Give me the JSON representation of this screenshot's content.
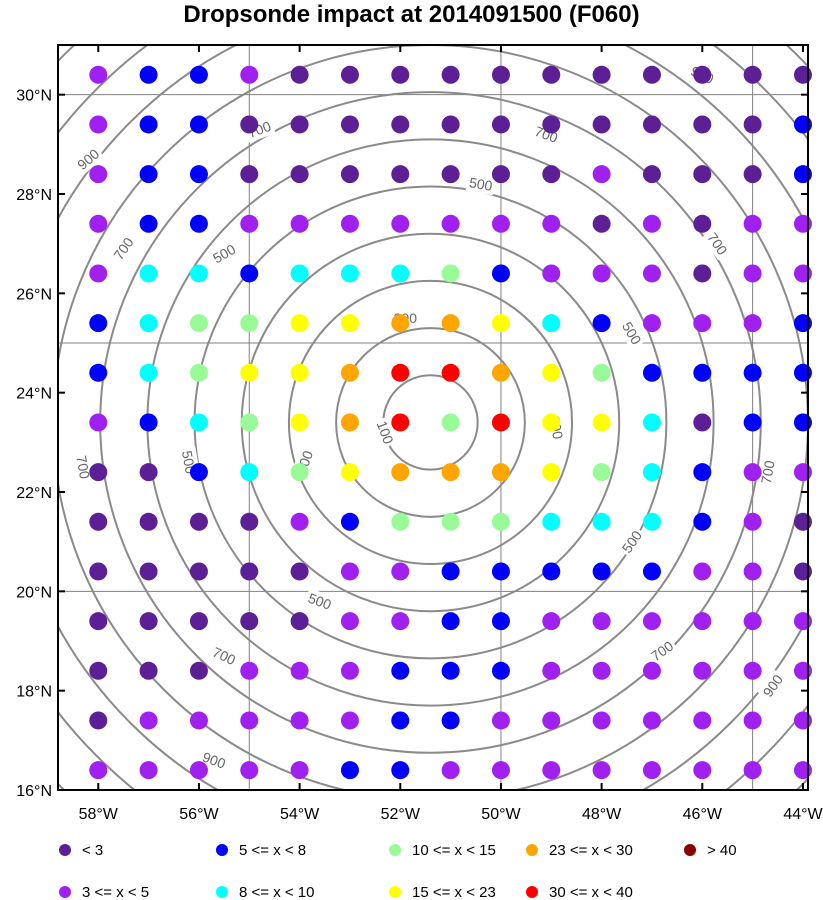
{
  "title": "Dropsonde impact at 2014091500 (F060)",
  "colors": {
    "lt3": "#5c1f96",
    "3to5": "#a020f0",
    "5to8": "#0000ff",
    "8to10": "#00ffff",
    "10to15": "#98fb98",
    "15to23": "#ffff00",
    "23to30": "#ffa500",
    "30to40": "#ff0000",
    "gt40": "#8b0000",
    "contour": "#8a8a8a",
    "gridline": "#808080",
    "frame": "#000000"
  },
  "axes": {
    "lon_range": [
      -58.8,
      -43.9
    ],
    "lat_range": [
      16.0,
      31.0
    ],
    "lon_ticks": [
      {
        "value": -58,
        "label": "58°W"
      },
      {
        "value": -56,
        "label": "56°W"
      },
      {
        "value": -54,
        "label": "54°W"
      },
      {
        "value": -52,
        "label": "52°W"
      },
      {
        "value": -50,
        "label": "50°W"
      },
      {
        "value": -48,
        "label": "48°W"
      },
      {
        "value": -46,
        "label": "46°W"
      },
      {
        "value": -44,
        "label": "44°W"
      }
    ],
    "lat_ticks": [
      {
        "value": 16,
        "label": "16°N"
      },
      {
        "value": 18,
        "label": "18°N"
      },
      {
        "value": 20,
        "label": "20°N"
      },
      {
        "value": 22,
        "label": "22°N"
      },
      {
        "value": 24,
        "label": "24°N"
      },
      {
        "value": 26,
        "label": "26°N"
      },
      {
        "value": 28,
        "label": "28°N"
      },
      {
        "value": 30,
        "label": "30°N"
      }
    ],
    "grid_lons": [
      -55,
      -50,
      -45
    ],
    "grid_lats": [
      20,
      25,
      30
    ]
  },
  "contours": {
    "center": {
      "lon": -51.4,
      "lat": 23.4
    },
    "radius_deg_per_100km": 0.95,
    "levels": [
      100,
      200,
      300,
      400,
      500,
      600,
      700,
      800,
      900,
      1000,
      1100
    ],
    "labels": [
      {
        "text": "100",
        "lon": -52.3,
        "lat": 23.2,
        "rotate": 70
      },
      {
        "text": "300",
        "lon": -51.9,
        "lat": 25.5,
        "rotate": 0
      },
      {
        "text": "300",
        "lon": -53.9,
        "lat": 22.6,
        "rotate": -70
      },
      {
        "text": "300",
        "lon": -48.9,
        "lat": 23.3,
        "rotate": 80
      },
      {
        "text": "500",
        "lon": -50.4,
        "lat": 28.2,
        "rotate": 10
      },
      {
        "text": "500",
        "lon": -55.5,
        "lat": 26.8,
        "rotate": -30
      },
      {
        "text": "500",
        "lon": -56.2,
        "lat": 22.6,
        "rotate": 80
      },
      {
        "text": "500",
        "lon": -47.4,
        "lat": 25.2,
        "rotate": 60
      },
      {
        "text": "500",
        "lon": -47.4,
        "lat": 21.0,
        "rotate": -55
      },
      {
        "text": "500",
        "lon": -53.6,
        "lat": 19.8,
        "rotate": 20
      },
      {
        "text": "700",
        "lon": -54.8,
        "lat": 29.3,
        "rotate": -20
      },
      {
        "text": "700",
        "lon": -49.1,
        "lat": 29.2,
        "rotate": 20
      },
      {
        "text": "700",
        "lon": -57.5,
        "lat": 26.9,
        "rotate": -55
      },
      {
        "text": "700",
        "lon": -45.7,
        "lat": 27.0,
        "rotate": 55
      },
      {
        "text": "700",
        "lon": -58.3,
        "lat": 22.5,
        "rotate": 80
      },
      {
        "text": "700",
        "lon": -44.7,
        "lat": 22.4,
        "rotate": -80
      },
      {
        "text": "700",
        "lon": -55.5,
        "lat": 18.7,
        "rotate": 25
      },
      {
        "text": "700",
        "lon": -46.8,
        "lat": 18.8,
        "rotate": -35
      },
      {
        "text": "900",
        "lon": -58.2,
        "lat": 28.7,
        "rotate": -40
      },
      {
        "text": "900",
        "lon": -46.0,
        "lat": 30.4,
        "rotate": 25
      },
      {
        "text": "900",
        "lon": -44.6,
        "lat": 18.1,
        "rotate": -55
      },
      {
        "text": "900",
        "lon": -55.7,
        "lat": 16.6,
        "rotate": 20
      }
    ]
  },
  "dots": {
    "lons": [
      -58,
      -57,
      -56,
      -55,
      -54,
      -53,
      -52,
      -51,
      -50,
      -49,
      -48,
      -47,
      -46,
      -45,
      -44
    ],
    "lats": [
      30.4,
      29.4,
      28.4,
      27.4,
      26.4,
      25.4,
      24.4,
      23.4,
      22.4,
      21.4,
      20.4,
      19.4,
      18.4,
      17.4,
      16.4
    ],
    "rows": [
      [
        "3to5",
        "5to8",
        "5to8",
        "3to5",
        "lt3",
        "lt3",
        "lt3",
        "lt3",
        "lt3",
        "lt3",
        "lt3",
        "lt3",
        "lt3",
        "lt3",
        "lt3"
      ],
      [
        "3to5",
        "5to8",
        "5to8",
        "lt3",
        "lt3",
        "lt3",
        "lt3",
        "lt3",
        "lt3",
        "lt3",
        "lt3",
        "lt3",
        "lt3",
        "lt3",
        "5to8"
      ],
      [
        "3to5",
        "5to8",
        "5to8",
        "lt3",
        "lt3",
        "lt3",
        "lt3",
        "lt3",
        "lt3",
        "lt3",
        "3to5",
        "lt3",
        "lt3",
        "lt3",
        "5to8"
      ],
      [
        "3to5",
        "5to8",
        "5to8",
        "3to5",
        "3to5",
        "3to5",
        "3to5",
        "3to5",
        "3to5",
        "3to5",
        "lt3",
        "3to5",
        "lt3",
        "3to5",
        "3to5"
      ],
      [
        "3to5",
        "8to10",
        "8to10",
        "5to8",
        "8to10",
        "8to10",
        "8to10",
        "10to15",
        "5to8",
        "3to5",
        "3to5",
        "3to5",
        "lt3",
        "3to5",
        "3to5"
      ],
      [
        "5to8",
        "8to10",
        "10to15",
        "10to15",
        "15to23",
        "15to23",
        "23to30",
        "23to30",
        "15to23",
        "8to10",
        "5to8",
        "3to5",
        "3to5",
        "3to5",
        "5to8"
      ],
      [
        "5to8",
        "8to10",
        "10to15",
        "15to23",
        "15to23",
        "23to30",
        "30to40",
        "30to40",
        "23to30",
        "15to23",
        "10to15",
        "5to8",
        "5to8",
        "5to8",
        "5to8"
      ],
      [
        "3to5",
        "5to8",
        "8to10",
        "10to15",
        "15to23",
        "23to30",
        "30to40",
        "10to15",
        "30to40",
        "15to23",
        "15to23",
        "8to10",
        "lt3",
        "5to8",
        "5to8"
      ],
      [
        "lt3",
        "lt3",
        "5to8",
        "8to10",
        "10to15",
        "15to23",
        "23to30",
        "23to30",
        "23to30",
        "15to23",
        "10to15",
        "8to10",
        "5to8",
        "3to5",
        "3to5"
      ],
      [
        "lt3",
        "lt3",
        "lt3",
        "lt3",
        "3to5",
        "5to8",
        "10to15",
        "10to15",
        "10to15",
        "8to10",
        "8to10",
        "8to10",
        "5to8",
        "3to5",
        "lt3"
      ],
      [
        "lt3",
        "lt3",
        "lt3",
        "lt3",
        "lt3",
        "3to5",
        "3to5",
        "5to8",
        "5to8",
        "5to8",
        "5to8",
        "5to8",
        "3to5",
        "3to5",
        "lt3"
      ],
      [
        "lt3",
        "lt3",
        "lt3",
        "lt3",
        "lt3",
        "3to5",
        "3to5",
        "5to8",
        "5to8",
        "3to5",
        "3to5",
        "3to5",
        "3to5",
        "3to5",
        "3to5"
      ],
      [
        "lt3",
        "lt3",
        "lt3",
        "3to5",
        "3to5",
        "3to5",
        "5to8",
        "5to8",
        "5to8",
        "3to5",
        "3to5",
        "3to5",
        "3to5",
        "3to5",
        "3to5"
      ],
      [
        "lt3",
        "3to5",
        "3to5",
        "3to5",
        "3to5",
        "3to5",
        "5to8",
        "5to8",
        "3to5",
        "3to5",
        "3to5",
        "3to5",
        "3to5",
        "3to5",
        "3to5"
      ],
      [
        "3to5",
        "3to5",
        "3to5",
        "3to5",
        "3to5",
        "5to8",
        "5to8",
        "3to5",
        "3to5",
        "3to5",
        "3to5",
        "3to5",
        "3to5",
        "3to5",
        "3to5"
      ]
    ]
  },
  "legend": {
    "items": [
      {
        "key": "lt3",
        "label": "<  3",
        "col": 0,
        "row": 0
      },
      {
        "key": "3to5",
        "label": "3 <= x <  5",
        "col": 0,
        "row": 1
      },
      {
        "key": "5to8",
        "label": "5 <= x <  8",
        "col": 1,
        "row": 0
      },
      {
        "key": "8to10",
        "label": "8 <= x < 10",
        "col": 1,
        "row": 1
      },
      {
        "key": "10to15",
        "label": "10 <= x < 15",
        "col": 2,
        "row": 0
      },
      {
        "key": "15to23",
        "label": "15 <= x < 23",
        "col": 2,
        "row": 1
      },
      {
        "key": "23to30",
        "label": "23 <= x < 30",
        "col": 3,
        "row": 0
      },
      {
        "key": "30to40",
        "label": "30 <= x < 40",
        "col": 3,
        "row": 1
      },
      {
        "key": "gt40",
        "label": "> 40",
        "col": 4,
        "row": 0
      }
    ]
  }
}
